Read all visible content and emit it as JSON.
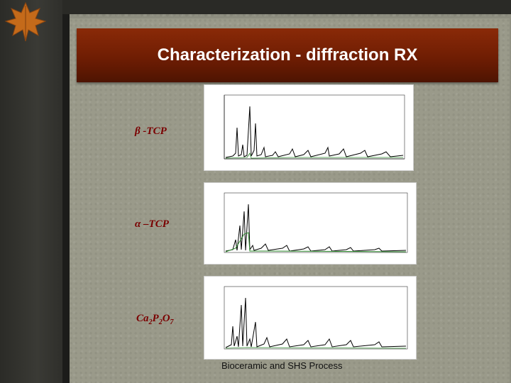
{
  "slide": {
    "title": "Characterization - diffraction RX",
    "footer": "Bioceramic and SHS Process"
  },
  "samples": [
    {
      "label_main": "β -TCP"
    },
    {
      "label_main": "α –TCP"
    },
    {
      "label_parts": [
        "Ca",
        "2",
        "P",
        "2",
        "O",
        "7"
      ]
    }
  ],
  "colors": {
    "title_bar": "#7a2306",
    "label_text": "#7a0000",
    "green_trace": "#2e8b2e"
  }
}
